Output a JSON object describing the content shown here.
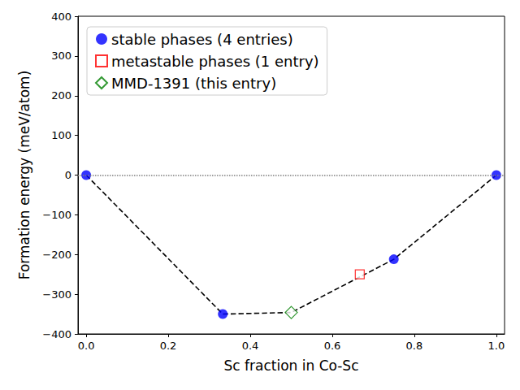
{
  "chart_data": {
    "type": "scatter",
    "xlabel": "Sc fraction in Co-Sc",
    "ylabel": "Formation energy (meV/atom)",
    "xlim": [
      -0.02,
      1.02
    ],
    "xticks": [
      {
        "value": 0,
        "label": "0.0"
      },
      0.2,
      0.4,
      0.6,
      0.8,
      {
        "value": 1,
        "label": "1.0"
      }
    ],
    "ylim": [
      -400,
      400
    ],
    "yticks": [
      {
        "value": -400,
        "label": "−400"
      },
      {
        "value": -300,
        "label": "−300"
      },
      {
        "value": -200,
        "label": "−200"
      },
      {
        "value": -100,
        "label": "−100"
      },
      0,
      100,
      200,
      300,
      400
    ],
    "legend": "upper left",
    "grid": false,
    "series": [
      {
        "name": "stable phases (4 entries)",
        "color": "#0000ff",
        "marker": "circle",
        "x": [
          0,
          0.333,
          0.75,
          1
        ],
        "values": [
          0,
          -350,
          -212,
          0
        ]
      },
      {
        "name": "metastable phases (1 entry)",
        "color": "#ff0000",
        "marker": "open_square",
        "x": [
          0.667
        ],
        "values": [
          -250
        ]
      },
      {
        "name": "MMD-1391 (this entry)",
        "color": "#008000",
        "marker": "open_diamond",
        "x": [
          0.5
        ],
        "values": [
          -346
        ]
      },
      {
        "type": "line",
        "color": "#000000",
        "line_style": "dashed",
        "x": [
          0,
          0.333,
          0.5,
          0.75,
          1
        ],
        "values": [
          0,
          -350,
          -346,
          -212,
          0
        ]
      }
    ],
    "hlines": [
      {
        "y": 0,
        "color": "#808080",
        "line_style": "dotted"
      }
    ]
  }
}
